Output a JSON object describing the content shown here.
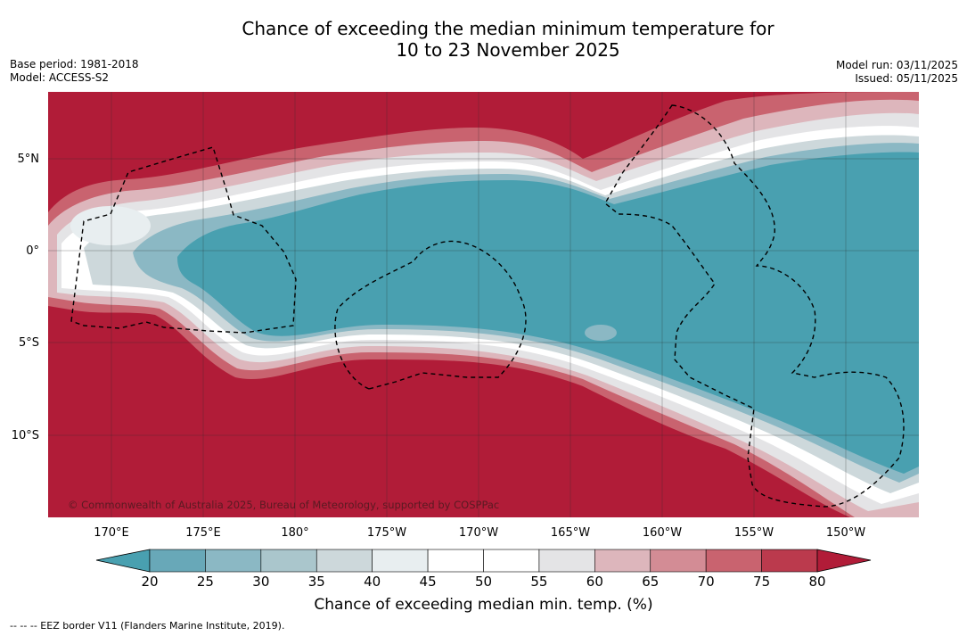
{
  "header": {
    "title_line1": "Chance of exceeding the median minimum temperature for",
    "title_line2": "10 to 23 November 2025",
    "base_period": "Base period: 1981-2018",
    "model": "Model: ACCESS-S2",
    "model_run": "Model run: 03/11/2025",
    "issued": "Issued: 05/11/2025"
  },
  "map": {
    "copyright": "© Commonwealth of Australia 2025, Bureau of Meteorology, supported by COSPPac",
    "lat_labels": [
      "5°N",
      "0°",
      "5°S",
      "10°S"
    ],
    "lon_labels": [
      "170°E",
      "175°E",
      "180°",
      "175°W",
      "170°W",
      "165°W",
      "160°W",
      "155°W",
      "150°W"
    ]
  },
  "colorbar": {
    "title": "Chance of exceeding median min. temp. (%)",
    "ticks": [
      "20",
      "25",
      "30",
      "35",
      "40",
      "45",
      "50",
      "55",
      "60",
      "65",
      "70",
      "75",
      "80"
    ],
    "colors": [
      "#49a0b0",
      "#68a8b8",
      "#8bb8c4",
      "#aac6cc",
      "#cdd8db",
      "#e8eef0",
      "#ffffff",
      "#ffffff",
      "#e4e4e6",
      "#ddb6bc",
      "#d38c95",
      "#c9636f",
      "#bb3a4d",
      "#b11c38"
    ]
  },
  "footer": {
    "eez_note": "--  --  -- EEZ border V11 (Flanders Marine Institute, 2019)."
  }
}
